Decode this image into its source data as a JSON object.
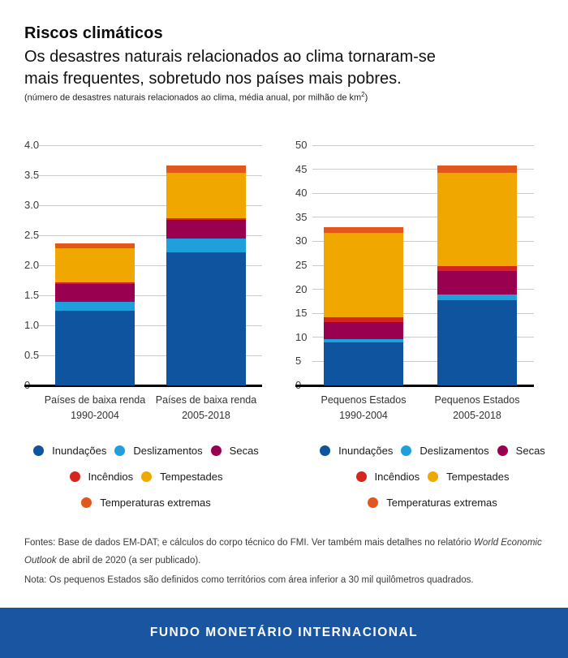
{
  "header": {
    "title": "Riscos climáticos",
    "subtitle_lines": [
      "Os desastres naturais relacionados ao clima tornaram-se",
      "mais frequentes, sobretudo nos países mais pobres."
    ],
    "note_text": "(número de desastres naturais relacionados ao clima, média anual, por milhão de km",
    "note_superscript": "2",
    "note_close": ")"
  },
  "colors": {
    "inundacoes": "#0e549e",
    "deslizamentos": "#1fa0dd",
    "secas": "#99004f",
    "incendios": "#d7241f",
    "tempestades": "#f0a800",
    "temperaturas_extremas": "#e4571b",
    "footer_bar": "#1a55a2",
    "gridline": "#cbcbcb",
    "axis_line": "#000000"
  },
  "chart_data": [
    {
      "type": "bar",
      "stacked": true,
      "title": "",
      "xlabel": "",
      "ylabel": "",
      "categories": [
        "Países de baixa renda 1990-2004",
        "Países de baixa renda 2005-2018"
      ],
      "category_labels": [
        [
          "Países de baixa renda",
          "1990-2004"
        ],
        [
          "Países de baixa renda",
          "2005-2018"
        ]
      ],
      "series": [
        {
          "name": "Inundações",
          "color_key": "inundacoes",
          "values": [
            1.24,
            2.21
          ]
        },
        {
          "name": "Deslizamentos",
          "color_key": "deslizamentos",
          "values": [
            0.15,
            0.24
          ]
        },
        {
          "name": "Secas",
          "color_key": "secas",
          "values": [
            0.3,
            0.31
          ]
        },
        {
          "name": "Incêndios",
          "color_key": "incendios",
          "values": [
            0.02,
            0.03
          ]
        },
        {
          "name": "Tempestades",
          "color_key": "tempestades",
          "values": [
            0.57,
            0.75
          ]
        },
        {
          "name": "Temperaturas extremas",
          "color_key": "temperaturas_extremas",
          "values": [
            0.08,
            0.12
          ]
        }
      ],
      "totals": [
        2.36,
        3.66
      ],
      "ylim": [
        0,
        4
      ],
      "yticks": [
        0,
        0.5,
        1,
        1.5,
        2,
        2.5,
        3,
        3.5,
        4
      ],
      "ytick_labels": [
        "0",
        "0.5",
        "1.0",
        "1.5",
        "2.0",
        "2.5",
        "3.0",
        "3.5",
        "4.0"
      ],
      "grid": true,
      "legend_position": "bottom"
    },
    {
      "type": "bar",
      "stacked": true,
      "title": "",
      "xlabel": "",
      "ylabel": "",
      "categories": [
        "Pequenos Estados 1990-2004",
        "Pequenos Estados 2005-2018"
      ],
      "category_labels": [
        [
          "Pequenos Estados",
          "1990-2004"
        ],
        [
          "Pequenos Estados",
          "2005-2018"
        ]
      ],
      "series": [
        {
          "name": "Inundações",
          "color_key": "inundacoes",
          "values": [
            9.0,
            17.7
          ]
        },
        {
          "name": "Deslizamentos",
          "color_key": "deslizamentos",
          "values": [
            0.7,
            1.3
          ]
        },
        {
          "name": "Secas",
          "color_key": "secas",
          "values": [
            3.5,
            4.8
          ]
        },
        {
          "name": "Incêndios",
          "color_key": "incendios",
          "values": [
            1.0,
            1.1
          ]
        },
        {
          "name": "Tempestades",
          "color_key": "tempestades",
          "values": [
            17.6,
            19.4
          ]
        },
        {
          "name": "Temperaturas extremas",
          "color_key": "temperaturas_extremas",
          "values": [
            1.2,
            1.5
          ]
        }
      ],
      "totals": [
        33.0,
        45.8
      ],
      "ylim": [
        0,
        50
      ],
      "yticks": [
        0,
        5,
        10,
        15,
        20,
        25,
        30,
        35,
        40,
        45,
        50
      ],
      "ytick_labels": [
        "0",
        "5",
        "10",
        "15",
        "20",
        "25",
        "30",
        "35",
        "40",
        "45",
        "50"
      ],
      "grid": true,
      "legend_position": "bottom"
    }
  ],
  "legend": {
    "items": [
      {
        "label": "Inundações",
        "color_key": "inundacoes"
      },
      {
        "label": "Deslizamentos",
        "color_key": "deslizamentos"
      },
      {
        "label": "Secas",
        "color_key": "secas"
      },
      {
        "label": "Incêndios",
        "color_key": "incendios"
      },
      {
        "label": "Tempestades",
        "color_key": "tempestades"
      },
      {
        "label": "Temperaturas extremas",
        "color_key": "temperaturas_extremas"
      }
    ],
    "rows": [
      [
        0,
        1,
        2
      ],
      [
        3,
        4
      ],
      [
        5
      ]
    ]
  },
  "footnotes": {
    "sources_prefix": "Fontes: Base de dados EM-DAT; e cálculos do corpo técnico do FMI. Ver também mais detalhes no relatório ",
    "sources_italic": "World Economic Outlook",
    "sources_suffix": " de abril de 2020 (a ser publicado).",
    "note": "Nota: Os pequenos Estados são definidos como territórios com área inferior a 30 mil quilômetros quadrados."
  },
  "footer": {
    "label": "FUNDO MONETÁRIO INTERNACIONAL"
  }
}
